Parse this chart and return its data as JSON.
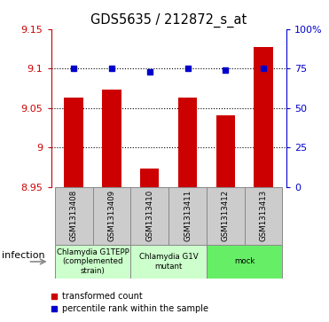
{
  "title": "GDS5635 / 212872_s_at",
  "samples": [
    "GSM1313408",
    "GSM1313409",
    "GSM1313410",
    "GSM1313411",
    "GSM1313412",
    "GSM1313413"
  ],
  "transformed_counts": [
    9.063,
    9.073,
    8.973,
    9.063,
    9.04,
    9.127
  ],
  "percentile_ranks": [
    75,
    75,
    73,
    75,
    74,
    75
  ],
  "ylim": [
    8.95,
    9.15
  ],
  "yticks": [
    8.95,
    9.0,
    9.05,
    9.1,
    9.15
  ],
  "ytick_labels": [
    "8.95",
    "9",
    "9.05",
    "9.1",
    "9.15"
  ],
  "right_yticks": [
    0,
    25,
    50,
    75,
    100
  ],
  "right_ytick_labels": [
    "0",
    "25",
    "50",
    "75",
    "100%"
  ],
  "bar_color": "#cc0000",
  "dot_color": "#0000cc",
  "bar_bottom": 8.95,
  "groups": [
    {
      "label": "Chlamydia G1TEPP\n(complemented\nstrain)",
      "start": 0,
      "end": 2,
      "color": "#ccffcc"
    },
    {
      "label": "Chlamydia G1V\nmutant",
      "start": 2,
      "end": 4,
      "color": "#ccffcc"
    },
    {
      "label": "mock",
      "start": 4,
      "end": 6,
      "color": "#66ee66"
    }
  ],
  "infection_label": "infection",
  "legend_items": [
    {
      "color": "#cc0000",
      "label": "transformed count"
    },
    {
      "color": "#0000cc",
      "label": "percentile rank within the sample"
    }
  ],
  "sample_box_color": "#cccccc",
  "right_axis_color": "#0000cc",
  "left_axis_color": "#cc0000"
}
